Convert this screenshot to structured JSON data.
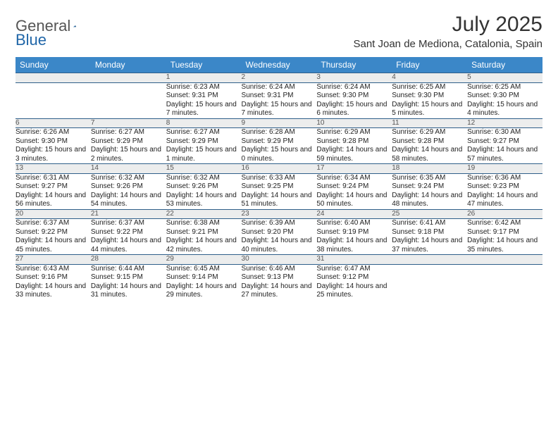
{
  "logo": {
    "general": "General",
    "blue": "Blue"
  },
  "title": "July 2025",
  "location": "Sant Joan de Mediona, Catalonia, Spain",
  "colors": {
    "header_bg": "#3b87c8",
    "header_text": "#ffffff",
    "daynum_bg": "#eceded",
    "rule": "#2f5f8a",
    "logo_blue": "#2066a8"
  },
  "weekdays": [
    "Sunday",
    "Monday",
    "Tuesday",
    "Wednesday",
    "Thursday",
    "Friday",
    "Saturday"
  ],
  "weeks": [
    [
      null,
      null,
      {
        "n": "1",
        "sr": "6:23 AM",
        "ss": "9:31 PM",
        "dl": "15 hours and 7 minutes."
      },
      {
        "n": "2",
        "sr": "6:24 AM",
        "ss": "9:31 PM",
        "dl": "15 hours and 7 minutes."
      },
      {
        "n": "3",
        "sr": "6:24 AM",
        "ss": "9:30 PM",
        "dl": "15 hours and 6 minutes."
      },
      {
        "n": "4",
        "sr": "6:25 AM",
        "ss": "9:30 PM",
        "dl": "15 hours and 5 minutes."
      },
      {
        "n": "5",
        "sr": "6:25 AM",
        "ss": "9:30 PM",
        "dl": "15 hours and 4 minutes."
      }
    ],
    [
      {
        "n": "6",
        "sr": "6:26 AM",
        "ss": "9:30 PM",
        "dl": "15 hours and 3 minutes."
      },
      {
        "n": "7",
        "sr": "6:27 AM",
        "ss": "9:29 PM",
        "dl": "15 hours and 2 minutes."
      },
      {
        "n": "8",
        "sr": "6:27 AM",
        "ss": "9:29 PM",
        "dl": "15 hours and 1 minute."
      },
      {
        "n": "9",
        "sr": "6:28 AM",
        "ss": "9:29 PM",
        "dl": "15 hours and 0 minutes."
      },
      {
        "n": "10",
        "sr": "6:29 AM",
        "ss": "9:28 PM",
        "dl": "14 hours and 59 minutes."
      },
      {
        "n": "11",
        "sr": "6:29 AM",
        "ss": "9:28 PM",
        "dl": "14 hours and 58 minutes."
      },
      {
        "n": "12",
        "sr": "6:30 AM",
        "ss": "9:27 PM",
        "dl": "14 hours and 57 minutes."
      }
    ],
    [
      {
        "n": "13",
        "sr": "6:31 AM",
        "ss": "9:27 PM",
        "dl": "14 hours and 56 minutes."
      },
      {
        "n": "14",
        "sr": "6:32 AM",
        "ss": "9:26 PM",
        "dl": "14 hours and 54 minutes."
      },
      {
        "n": "15",
        "sr": "6:32 AM",
        "ss": "9:26 PM",
        "dl": "14 hours and 53 minutes."
      },
      {
        "n": "16",
        "sr": "6:33 AM",
        "ss": "9:25 PM",
        "dl": "14 hours and 51 minutes."
      },
      {
        "n": "17",
        "sr": "6:34 AM",
        "ss": "9:24 PM",
        "dl": "14 hours and 50 minutes."
      },
      {
        "n": "18",
        "sr": "6:35 AM",
        "ss": "9:24 PM",
        "dl": "14 hours and 48 minutes."
      },
      {
        "n": "19",
        "sr": "6:36 AM",
        "ss": "9:23 PM",
        "dl": "14 hours and 47 minutes."
      }
    ],
    [
      {
        "n": "20",
        "sr": "6:37 AM",
        "ss": "9:22 PM",
        "dl": "14 hours and 45 minutes."
      },
      {
        "n": "21",
        "sr": "6:37 AM",
        "ss": "9:22 PM",
        "dl": "14 hours and 44 minutes."
      },
      {
        "n": "22",
        "sr": "6:38 AM",
        "ss": "9:21 PM",
        "dl": "14 hours and 42 minutes."
      },
      {
        "n": "23",
        "sr": "6:39 AM",
        "ss": "9:20 PM",
        "dl": "14 hours and 40 minutes."
      },
      {
        "n": "24",
        "sr": "6:40 AM",
        "ss": "9:19 PM",
        "dl": "14 hours and 38 minutes."
      },
      {
        "n": "25",
        "sr": "6:41 AM",
        "ss": "9:18 PM",
        "dl": "14 hours and 37 minutes."
      },
      {
        "n": "26",
        "sr": "6:42 AM",
        "ss": "9:17 PM",
        "dl": "14 hours and 35 minutes."
      }
    ],
    [
      {
        "n": "27",
        "sr": "6:43 AM",
        "ss": "9:16 PM",
        "dl": "14 hours and 33 minutes."
      },
      {
        "n": "28",
        "sr": "6:44 AM",
        "ss": "9:15 PM",
        "dl": "14 hours and 31 minutes."
      },
      {
        "n": "29",
        "sr": "6:45 AM",
        "ss": "9:14 PM",
        "dl": "14 hours and 29 minutes."
      },
      {
        "n": "30",
        "sr": "6:46 AM",
        "ss": "9:13 PM",
        "dl": "14 hours and 27 minutes."
      },
      {
        "n": "31",
        "sr": "6:47 AM",
        "ss": "9:12 PM",
        "dl": "14 hours and 25 minutes."
      },
      null,
      null
    ]
  ],
  "labels": {
    "sunrise": "Sunrise: ",
    "sunset": "Sunset: ",
    "daylight": "Daylight: "
  }
}
